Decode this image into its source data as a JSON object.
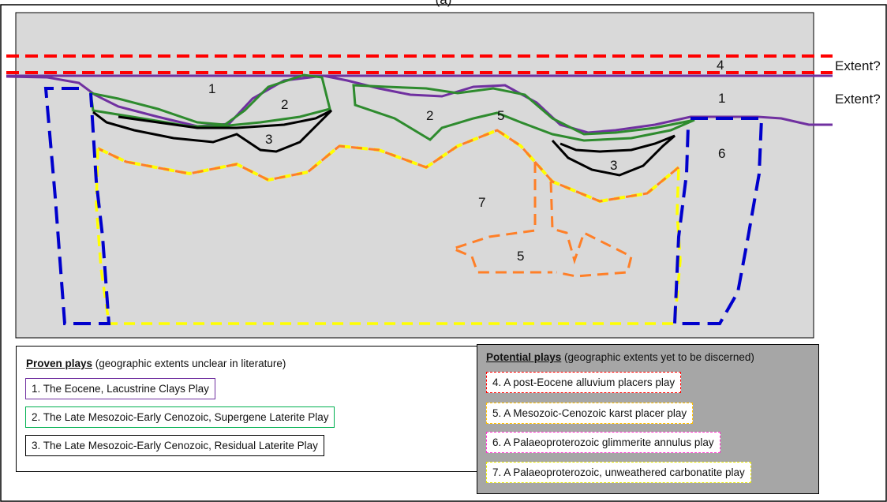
{
  "top_label": "(a)",
  "cross_section": {
    "extent_labels": [
      "Extent?",
      "Extent?"
    ],
    "zone_labels": [
      "1",
      "1",
      "2",
      "2",
      "3",
      "3",
      "4",
      "5",
      "5",
      "6",
      "7"
    ]
  },
  "proven": {
    "title": "Proven plays",
    "subtitle": " (geographic extents unclear in literature)",
    "items": [
      {
        "label": "1. The Eocene, Lacustrine Clays Play",
        "color": "#7030a0",
        "style": "solid"
      },
      {
        "label": "2. The Late Mesozoic-Early Cenozoic, Supergene Laterite Play",
        "color": "#00b050",
        "style": "solid"
      },
      {
        "label": "3. The Late Mesozoic-Early Cenozoic, Residual Laterite Play",
        "color": "#000000",
        "style": "solid"
      }
    ]
  },
  "potential": {
    "title": "Potential plays",
    "subtitle": " (geographic extents yet to be discerned)",
    "items": [
      {
        "label": "4. A post-Eocene alluvium placers play",
        "color": "#ff0000",
        "style": "dashed"
      },
      {
        "label": "5. A Mesozoic-Cenozoic karst placer play",
        "color": "#ffc000",
        "style": "dashed"
      },
      {
        "label": "6. A Palaeoproterozoic glimmerite annulus play",
        "color": "#ff33cc",
        "style": "dashed"
      },
      {
        "label": "7. A Palaeoproterozoic, unweathered carbonatite play",
        "color": "#e6e600",
        "style": "dashed"
      }
    ]
  }
}
